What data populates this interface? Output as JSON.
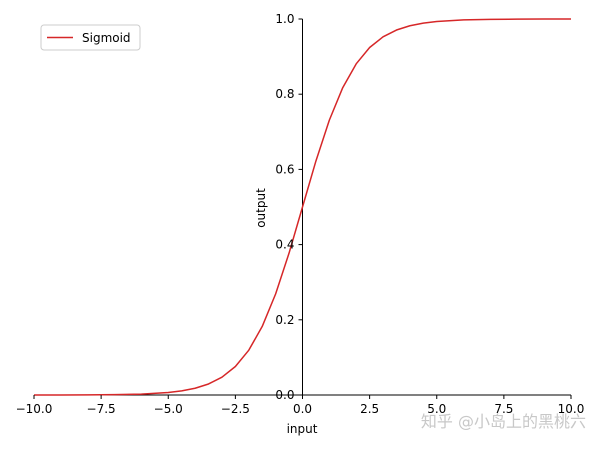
{
  "chart_data": {
    "type": "line",
    "title": "",
    "xlabel": "input",
    "ylabel": "output",
    "xlim": [
      -10,
      10
    ],
    "ylim": [
      0,
      1
    ],
    "x_ticks": [
      -10,
      -7.5,
      -5,
      -2.5,
      0,
      2.5,
      5,
      7.5,
      10
    ],
    "x_tick_labels": [
      "−10.0",
      "−7.5",
      "−5.0",
      "−2.5",
      "0.0",
      "2.5",
      "5.0",
      "7.5",
      "10.0"
    ],
    "y_ticks": [
      0,
      0.2,
      0.4,
      0.6,
      0.8,
      1.0
    ],
    "y_tick_labels": [
      "0.0",
      "0.2",
      "0.4",
      "0.6",
      "0.8",
      "1.0"
    ],
    "grid": false,
    "legend_position": "top-left",
    "series": [
      {
        "name": "Sigmoid",
        "color": "#d62728",
        "x": [
          -10,
          -9,
          -8,
          -7,
          -6,
          -5,
          -4.5,
          -4,
          -3.5,
          -3,
          -2.5,
          -2,
          -1.5,
          -1,
          -0.5,
          0,
          0.5,
          1,
          1.5,
          2,
          2.5,
          3,
          3.5,
          4,
          4.5,
          5,
          6,
          7,
          8,
          9,
          10
        ],
        "y": [
          5e-05,
          0.00012,
          0.00034,
          0.00091,
          0.00247,
          0.00669,
          0.01099,
          0.01799,
          0.02931,
          0.04743,
          0.07586,
          0.1192,
          0.18243,
          0.26894,
          0.37754,
          0.5,
          0.62246,
          0.73106,
          0.81757,
          0.8808,
          0.92414,
          0.95257,
          0.97069,
          0.98201,
          0.98901,
          0.99331,
          0.99753,
          0.99909,
          0.99966,
          0.99988,
          0.99995
        ]
      }
    ]
  },
  "watermark": "知乎 @小岛上的黑桃六"
}
